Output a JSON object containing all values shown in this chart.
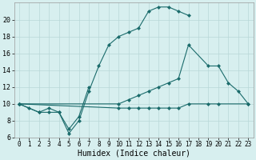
{
  "xlabel": "Humidex (Indice chaleur)",
  "bg_color": "#d7efef",
  "line_color": "#1a6b6b",
  "grid_color": "#b8d8d8",
  "xlim": [
    -0.5,
    23.5
  ],
  "ylim": [
    6,
    22
  ],
  "xticks": [
    0,
    1,
    2,
    3,
    4,
    5,
    6,
    7,
    8,
    9,
    10,
    11,
    12,
    13,
    14,
    15,
    16,
    17,
    18,
    19,
    20,
    21,
    22,
    23
  ],
  "yticks": [
    6,
    8,
    10,
    12,
    14,
    16,
    18,
    20
  ],
  "line1_x": [
    0,
    1,
    2,
    3,
    4,
    5,
    6,
    7
  ],
  "line1_y": [
    10,
    9.5,
    9,
    9,
    9,
    7,
    8.5,
    12
  ],
  "line2_x": [
    0,
    2,
    3,
    4,
    5,
    6,
    7,
    8,
    9,
    10,
    11,
    12,
    13,
    14,
    15,
    16,
    17
  ],
  "line2_y": [
    10,
    9,
    9.5,
    9,
    6.5,
    8,
    11.5,
    14.5,
    17,
    18,
    18.5,
    19,
    21,
    21.5,
    21.5,
    21,
    20.5
  ],
  "line3_x": [
    0,
    10,
    11,
    12,
    13,
    14,
    15,
    16,
    17,
    19,
    20,
    21,
    22,
    23
  ],
  "line3_y": [
    10,
    10,
    10.5,
    11,
    11.5,
    12,
    12.5,
    13,
    17,
    14.5,
    14.5,
    12.5,
    11.5,
    10
  ],
  "line4_x": [
    0,
    10,
    11,
    12,
    13,
    14,
    15,
    16,
    17,
    19,
    20,
    23
  ],
  "line4_y": [
    10,
    9.5,
    9.5,
    9.5,
    9.5,
    9.5,
    9.5,
    9.5,
    10,
    10,
    10,
    10
  ],
  "tick_fontsize": 6,
  "xlabel_fontsize": 7
}
